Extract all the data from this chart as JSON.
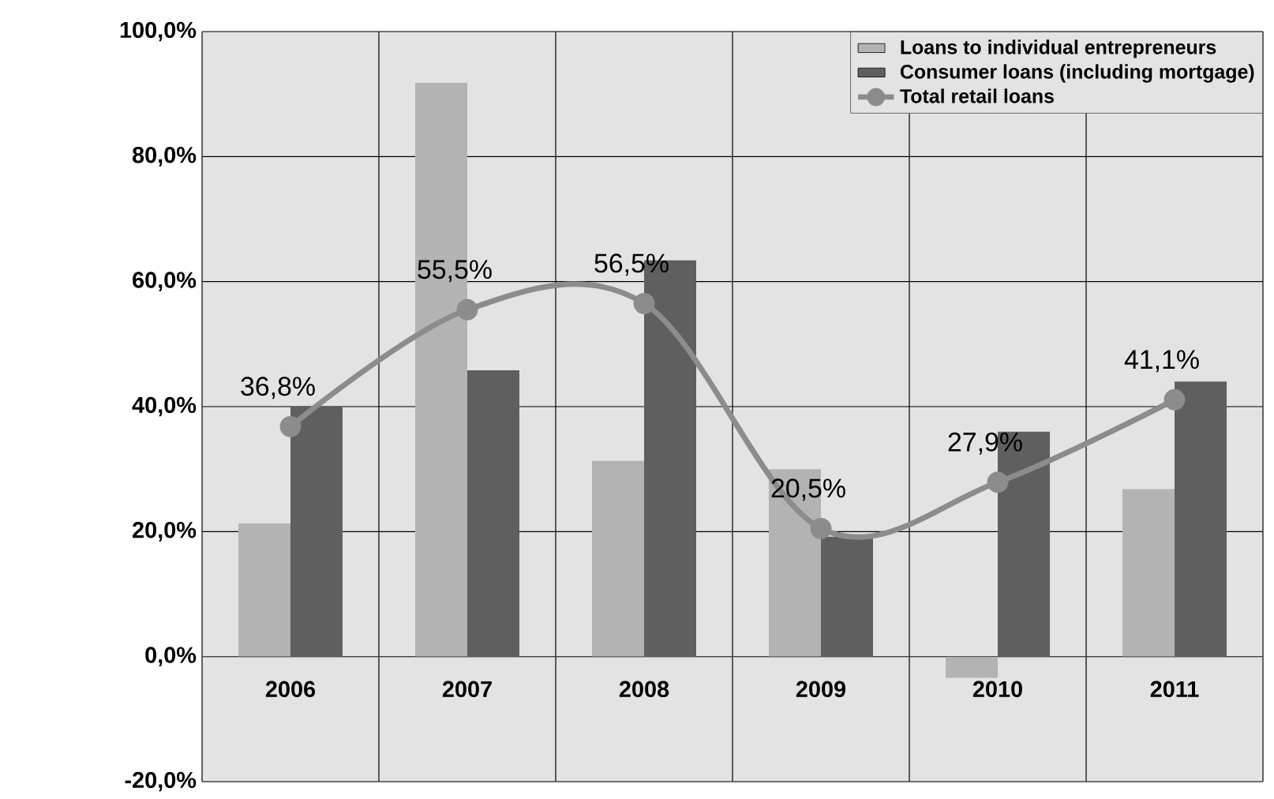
{
  "chart_data": {
    "type": "bar",
    "categories": [
      "2006",
      "2007",
      "2008",
      "2009",
      "2010",
      "2011"
    ],
    "series": [
      {
        "name": "Loans to individual entrepreneurs",
        "color": "#b3b3b3",
        "values": [
          21.3,
          91.8,
          31.3,
          30.0,
          -3.4,
          26.8
        ]
      },
      {
        "name": "Consumer loans (including mortgage)",
        "color": "#5f5f5f",
        "values": [
          40.0,
          45.8,
          63.4,
          19.2,
          36.0,
          44.0
        ]
      },
      {
        "name": "Total retail loans",
        "type": "line",
        "marker": "circle",
        "color": "#8c8c8c",
        "values": [
          36.8,
          55.5,
          56.5,
          20.5,
          27.9,
          41.1
        ],
        "value_labels": [
          "36,8%",
          "55,5%",
          "56,5%",
          "20,5%",
          "27,9%",
          "41,1%"
        ]
      }
    ],
    "ylim": [
      -20,
      100
    ],
    "yticks": [
      {
        "value": -20,
        "label": "-20,0%"
      },
      {
        "value": 0,
        "label": "0,0%"
      },
      {
        "value": 20,
        "label": "20,0%"
      },
      {
        "value": 40,
        "label": "40,0%"
      },
      {
        "value": 60,
        "label": "60,0%"
      },
      {
        "value": 80,
        "label": "80,0%"
      },
      {
        "value": 100,
        "label": "100,0%"
      }
    ],
    "grid": true,
    "legend": "top right"
  }
}
